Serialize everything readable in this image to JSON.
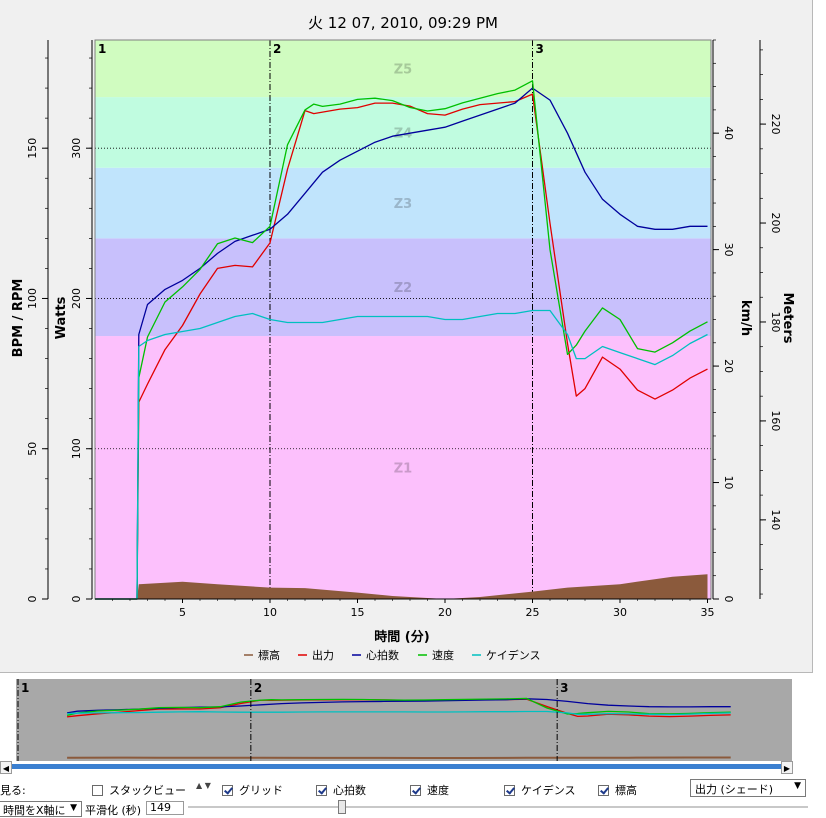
{
  "chart_data": {
    "type": "line",
    "title": "火 12 07, 2010, 09:29 PM",
    "xlabel": "時間 (分)",
    "x_ticks": [
      5,
      10,
      15,
      20,
      25,
      30,
      35
    ],
    "xlim": [
      0,
      35.2
    ],
    "axes": {
      "bpm_rpm": {
        "label": "BPM / RPM",
        "ticks": [
          0,
          50,
          100,
          150
        ],
        "range": [
          0,
          186
        ]
      },
      "watts": {
        "label": "Watts",
        "ticks": [
          0,
          100,
          200,
          300
        ],
        "range": [
          0,
          372
        ]
      },
      "kmh": {
        "label": "km/h",
        "ticks": [
          0,
          10,
          20,
          30,
          40
        ],
        "range": [
          0,
          48
        ]
      },
      "meters": {
        "label": "Meters",
        "ticks": [
          140,
          160,
          180,
          200,
          220
        ],
        "range": [
          124,
          237
        ]
      }
    },
    "zones": [
      {
        "label": "Z1",
        "from": 0,
        "to": 175,
        "color": "#fcc0fc"
      },
      {
        "label": "Z2",
        "from": 175,
        "to": 240,
        "color": "#c8c0fc"
      },
      {
        "label": "Z3",
        "from": 240,
        "to": 287,
        "color": "#c0e4fc"
      },
      {
        "label": "Z4",
        "from": 287,
        "to": 334,
        "color": "#c0fce0"
      },
      {
        "label": "Z5",
        "from": 334,
        "to": 372,
        "color": "#d0fcc0"
      }
    ],
    "markers": [
      {
        "label": "1",
        "x": 0
      },
      {
        "label": "2",
        "x": 10
      },
      {
        "label": "3",
        "x": 25
      }
    ],
    "series": [
      {
        "name": "標高",
        "color": "#8b5a3c",
        "axis": "meters",
        "x": [
          0,
          2.4,
          2.5,
          5,
          7,
          10,
          12,
          15,
          17,
          20,
          22,
          25,
          27,
          30,
          33,
          35
        ],
        "y": [
          124,
          124,
          127,
          127.5,
          127,
          126.3,
          126.2,
          125.3,
          124.6,
          124,
          124.4,
          125.5,
          126.3,
          127,
          128.5,
          129
        ]
      },
      {
        "name": "出力",
        "color": "#e00000",
        "axis": "watts",
        "x": [
          0,
          2.4,
          2.5,
          3,
          4,
          5,
          6,
          7,
          8,
          9,
          10,
          11,
          12,
          12.5,
          13,
          14,
          15,
          16,
          17,
          18,
          19,
          20,
          21,
          22,
          23,
          24,
          25,
          26,
          27,
          27.5,
          28,
          29,
          30,
          31,
          32,
          33,
          34,
          35
        ],
        "y": [
          0,
          0,
          131,
          143,
          166,
          182,
          203,
          220,
          222,
          221,
          237,
          286,
          325,
          323,
          324,
          326,
          327,
          330,
          330,
          328,
          323,
          322,
          326,
          329,
          330,
          331,
          336,
          250,
          170,
          135,
          140,
          161,
          153,
          139,
          133,
          139,
          147,
          153
        ]
      },
      {
        "name": "心拍数",
        "color": "#00009c",
        "axis": "bpm_rpm",
        "x": [
          0,
          2.4,
          2.5,
          3,
          4,
          5,
          6,
          7,
          8,
          9,
          10,
          11,
          12,
          13,
          14,
          15,
          16,
          17,
          18,
          19,
          20,
          21,
          22,
          23,
          24,
          25,
          26,
          27,
          28,
          29,
          30,
          31,
          32,
          33,
          34,
          35
        ],
        "y": [
          0,
          0,
          88,
          98,
          103,
          106,
          110,
          115,
          119,
          121,
          123,
          128,
          135,
          142,
          146,
          149,
          152,
          154,
          155,
          156,
          157,
          159,
          161,
          163,
          165,
          170,
          166,
          155,
          142,
          133,
          128,
          124,
          123,
          123,
          124,
          124
        ]
      },
      {
        "name": "速度",
        "color": "#00c000",
        "axis": "kmh",
        "x": [
          0,
          2.4,
          2.5,
          3,
          4,
          5,
          6,
          7,
          8,
          9,
          10,
          11,
          12,
          12.5,
          13,
          14,
          15,
          16,
          17,
          18,
          19,
          20,
          21,
          22,
          23,
          24,
          25,
          26,
          27,
          27.5,
          28,
          29,
          30,
          31,
          32,
          33,
          34,
          35
        ],
        "y": [
          0,
          0,
          19,
          22.5,
          25.5,
          26.8,
          28.3,
          30.5,
          31,
          30.6,
          32,
          39,
          42,
          42.5,
          42.3,
          42.5,
          42.9,
          43,
          42.8,
          42.2,
          41.9,
          42.1,
          42.6,
          43,
          43.4,
          43.7,
          44.5,
          30,
          21,
          21.8,
          23,
          25,
          24,
          21.5,
          21.2,
          22,
          23,
          23.8
        ]
      },
      {
        "name": "ケイデンス",
        "color": "#00c0c0",
        "axis": "bpm_rpm",
        "x": [
          0,
          2.4,
          2.5,
          3,
          4,
          5,
          6,
          7,
          8,
          9,
          10,
          11,
          12,
          13,
          14,
          15,
          16,
          17,
          18,
          19,
          20,
          21,
          22,
          23,
          24,
          25,
          26,
          27,
          27.5,
          28,
          29,
          30,
          31,
          32,
          33,
          34,
          35
        ],
        "y": [
          0,
          0,
          84,
          86,
          88,
          89,
          90,
          92,
          94,
          95,
          93,
          92,
          92,
          92,
          93,
          94,
          94,
          94,
          94,
          94,
          93,
          93,
          94,
          95,
          95,
          96,
          96,
          88,
          80,
          80,
          84,
          82,
          80,
          78,
          81,
          85,
          88
        ]
      }
    ]
  },
  "legend_items": [
    {
      "label": "標高",
      "color": "#8b5a3c"
    },
    {
      "label": "出力",
      "color": "#e00000"
    },
    {
      "label": "心拍数",
      "color": "#00009c"
    },
    {
      "label": "速度",
      "color": "#00c000"
    },
    {
      "label": "ケイデンス",
      "color": "#00c0c0"
    }
  ],
  "controls": {
    "view_label": "見る:",
    "stack_view": "スタックビュー",
    "grid": "グリッド",
    "heart_rate": "心拍数",
    "speed": "速度",
    "cadence": "ケイデンス",
    "altitude": "標高",
    "shade_select": "出力 (シェード)",
    "x_axis_select": "時間をX軸に",
    "smoothing_label": "平滑化 (秒)",
    "smoothing_value": "149"
  }
}
